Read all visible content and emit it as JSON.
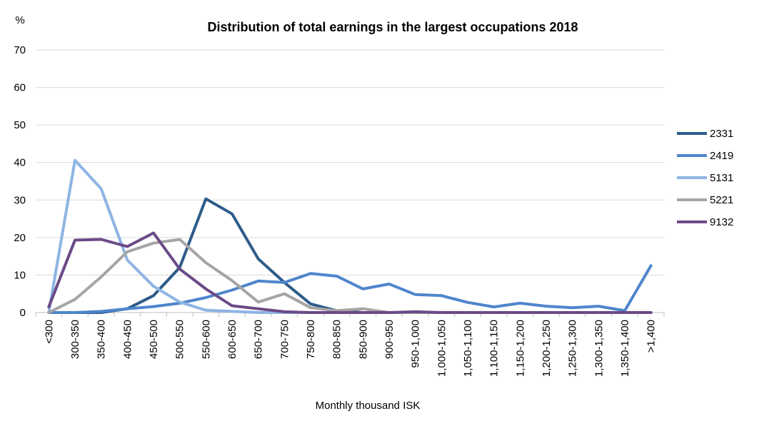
{
  "chart_data": {
    "type": "line",
    "title": "Distribution of total earnings in the largest occupations 2018",
    "ylabel": "%",
    "xlabel": "Monthly thousand ISK",
    "ylim": [
      0,
      70
    ],
    "yticks": [
      0,
      10,
      20,
      30,
      40,
      50,
      60,
      70
    ],
    "grid": true,
    "legend": "right",
    "categories": [
      "<300",
      "300-350",
      "350-400",
      "400-450",
      "450-500",
      "500-550",
      "550-600",
      "600-650",
      "650-700",
      "700-750",
      "750-800",
      "800-850",
      "850-900",
      "900-950",
      "950-1,000",
      "1,000-1,050",
      "1,050-1,100",
      "1,100-1,150",
      "1,150-1,200",
      "1,200-1,250",
      "1,250-1,300",
      "1,300-1,350",
      "1,350-1,400",
      ">1,400"
    ],
    "series": [
      {
        "name": "2331",
        "color": "#2E5C8A",
        "values": [
          0,
          0,
          0,
          1,
          4.5,
          12,
          30.3,
          26.3,
          14.3,
          8,
          2.3,
          0.5,
          0,
          0,
          0,
          0,
          0,
          0,
          0,
          0,
          0,
          0,
          0,
          0
        ]
      },
      {
        "name": "2419",
        "color": "#4F86CC",
        "values": [
          0,
          0,
          0.3,
          1,
          1.6,
          2.5,
          4,
          6,
          8.4,
          8,
          10.4,
          9.7,
          6.3,
          7.6,
          4.8,
          4.5,
          2.7,
          1.5,
          2.5,
          1.7,
          1.3,
          1.7,
          0.5,
          12.5
        ]
      },
      {
        "name": "5131",
        "color": "#8EB4E3",
        "values": [
          0,
          40.6,
          33,
          14,
          7,
          2.8,
          0.6,
          0.3,
          0,
          0,
          0,
          0,
          0,
          0,
          0,
          0,
          0,
          0,
          0,
          0,
          0,
          0,
          0,
          0
        ]
      },
      {
        "name": "5221",
        "color": "#A5A5A5",
        "values": [
          0,
          3.5,
          9.5,
          16.2,
          18.5,
          19.5,
          13.3,
          8.5,
          2.8,
          5,
          1.3,
          0.5,
          1,
          0,
          0,
          0,
          0,
          0,
          0,
          0,
          0,
          0,
          0,
          0
        ]
      },
      {
        "name": "9132",
        "color": "#6B4A86",
        "values": [
          1.5,
          19.3,
          19.5,
          17.6,
          21.2,
          11.6,
          6.3,
          1.8,
          1,
          0.2,
          0,
          0,
          0,
          0,
          0.2,
          0,
          0,
          0,
          0,
          0,
          0,
          0,
          0,
          0
        ]
      }
    ]
  }
}
